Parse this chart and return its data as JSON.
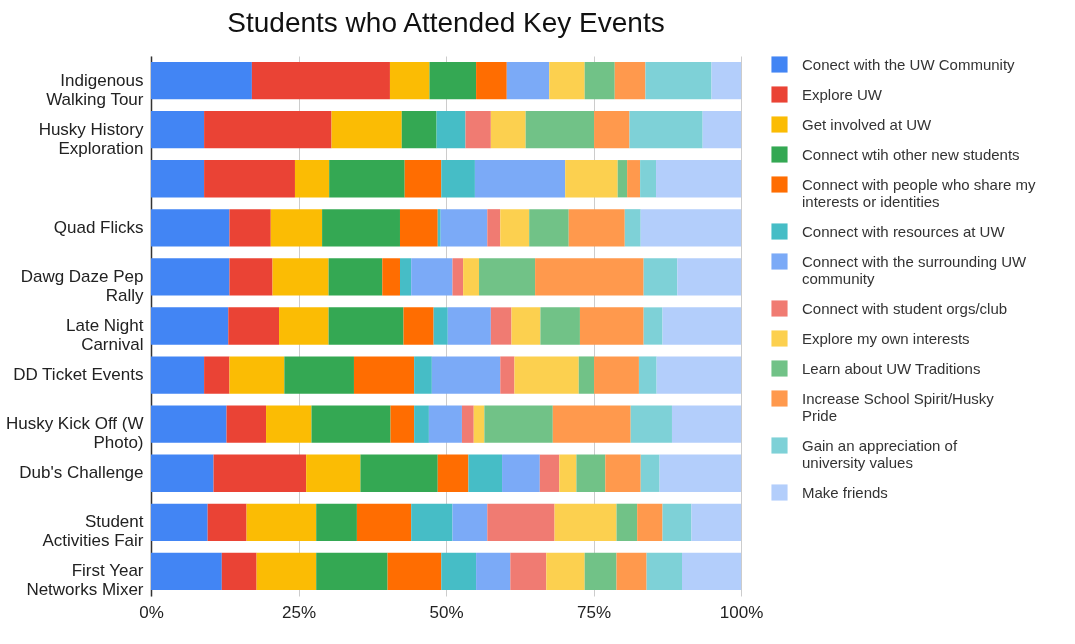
{
  "chart_data": {
    "type": "bar",
    "orientation": "horizontal",
    "stacked": true,
    "title": "Students who Attended Key Events",
    "categories": [
      "Indigenous Walking Tour",
      "Husky History Exploration",
      null,
      "Quad Flicks",
      "Dawg Daze Pep Rally",
      "Late Night Carnival",
      "DD Ticket Events",
      "Husky Kick Off (W Photo)",
      "Dub's Challenge",
      "Student Activities Fair",
      "First Year Networks Mixer"
    ],
    "xlim": [
      0,
      100
    ],
    "xticks": [
      {
        "value": 0,
        "label": "0%"
      },
      {
        "value": 25,
        "label": "25%"
      },
      {
        "value": 50,
        "label": "50%"
      },
      {
        "value": 75,
        "label": "75%"
      },
      {
        "value": 100,
        "label": "100%"
      }
    ],
    "grid": "x",
    "legend": "right",
    "series": [
      {
        "name": "Conect with the UW Community",
        "color": "#4285f4",
        "values": [
          17.1,
          9.0,
          9.0,
          13.3,
          13.3,
          13.1,
          9.0,
          12.8,
          10.6,
          9.6,
          12.0
        ]
      },
      {
        "name": "Explore UW",
        "color": "#ea4335",
        "values": [
          23.4,
          21.6,
          15.4,
          7.0,
          7.3,
          8.6,
          4.3,
          6.7,
          15.7,
          6.6,
          5.9
        ]
      },
      {
        "name": "Get involved at UW",
        "color": "#fbbc04",
        "values": [
          6.7,
          11.9,
          5.8,
          8.7,
          9.5,
          8.4,
          9.3,
          7.7,
          9.2,
          11.8,
          10.1
        ]
      },
      {
        "name": "Connect wtih other new students",
        "color": "#34a853",
        "values": [
          7.9,
          5.9,
          12.8,
          13.2,
          9.1,
          12.7,
          11.8,
          13.4,
          13.1,
          6.9,
          12.1
        ]
      },
      {
        "name": "Connect with people who share my interests or identities",
        "color": "#ff6d01",
        "values": [
          5.2,
          0,
          6.2,
          6.4,
          3.0,
          5.1,
          10.2,
          4.0,
          5.2,
          9.2,
          9.1
        ]
      },
      {
        "name": "Connect with resources at UW",
        "color": "#46bdc6",
        "values": [
          0,
          4.9,
          5.7,
          0.5,
          1.9,
          2.4,
          3.0,
          2.5,
          5.7,
          7.0,
          5.9
        ]
      },
      {
        "name": "Connect with the surrounding UW community",
        "color": "#7baaf7",
        "values": [
          7.2,
          0,
          15.3,
          7.9,
          7.0,
          7.3,
          11.6,
          5.6,
          6.4,
          5.9,
          5.8
        ]
      },
      {
        "name": "Connect with student orgs/club",
        "color": "#f07b72",
        "values": [
          0,
          4.3,
          0,
          2.2,
          1.8,
          3.5,
          2.4,
          2.0,
          3.3,
          11.4,
          6.1
        ]
      },
      {
        "name": "Explore my own interests",
        "color": "#fcd04f",
        "values": [
          6.0,
          5.9,
          8.9,
          4.9,
          2.7,
          4.9,
          10.9,
          1.8,
          2.9,
          10.5,
          6.5
        ]
      },
      {
        "name": "Learn about UW Traditions",
        "color": "#71c287",
        "values": [
          5.1,
          11.6,
          1.6,
          6.7,
          9.5,
          6.7,
          2.6,
          11.6,
          4.9,
          3.5,
          5.4
        ]
      },
      {
        "name": "Increase School Spirit/Husky Pride",
        "color": "#ff994d",
        "values": [
          5.2,
          6.0,
          2.2,
          9.5,
          18.4,
          10.8,
          7.6,
          13.2,
          6.0,
          4.3,
          5.1
        ]
      },
      {
        "name": "Gain an appreciation of university values",
        "color": "#7ed1d7",
        "values": [
          11.2,
          12.4,
          2.7,
          2.7,
          5.7,
          3.2,
          3.0,
          7.0,
          3.2,
          4.9,
          6.0
        ]
      },
      {
        "name": "Make friends",
        "color": "#b3cefb",
        "values": [
          5.0,
          6.5,
          14.4,
          17.0,
          10.8,
          13.3,
          14.3,
          11.7,
          13.8,
          8.4,
          10.0
        ]
      }
    ]
  }
}
